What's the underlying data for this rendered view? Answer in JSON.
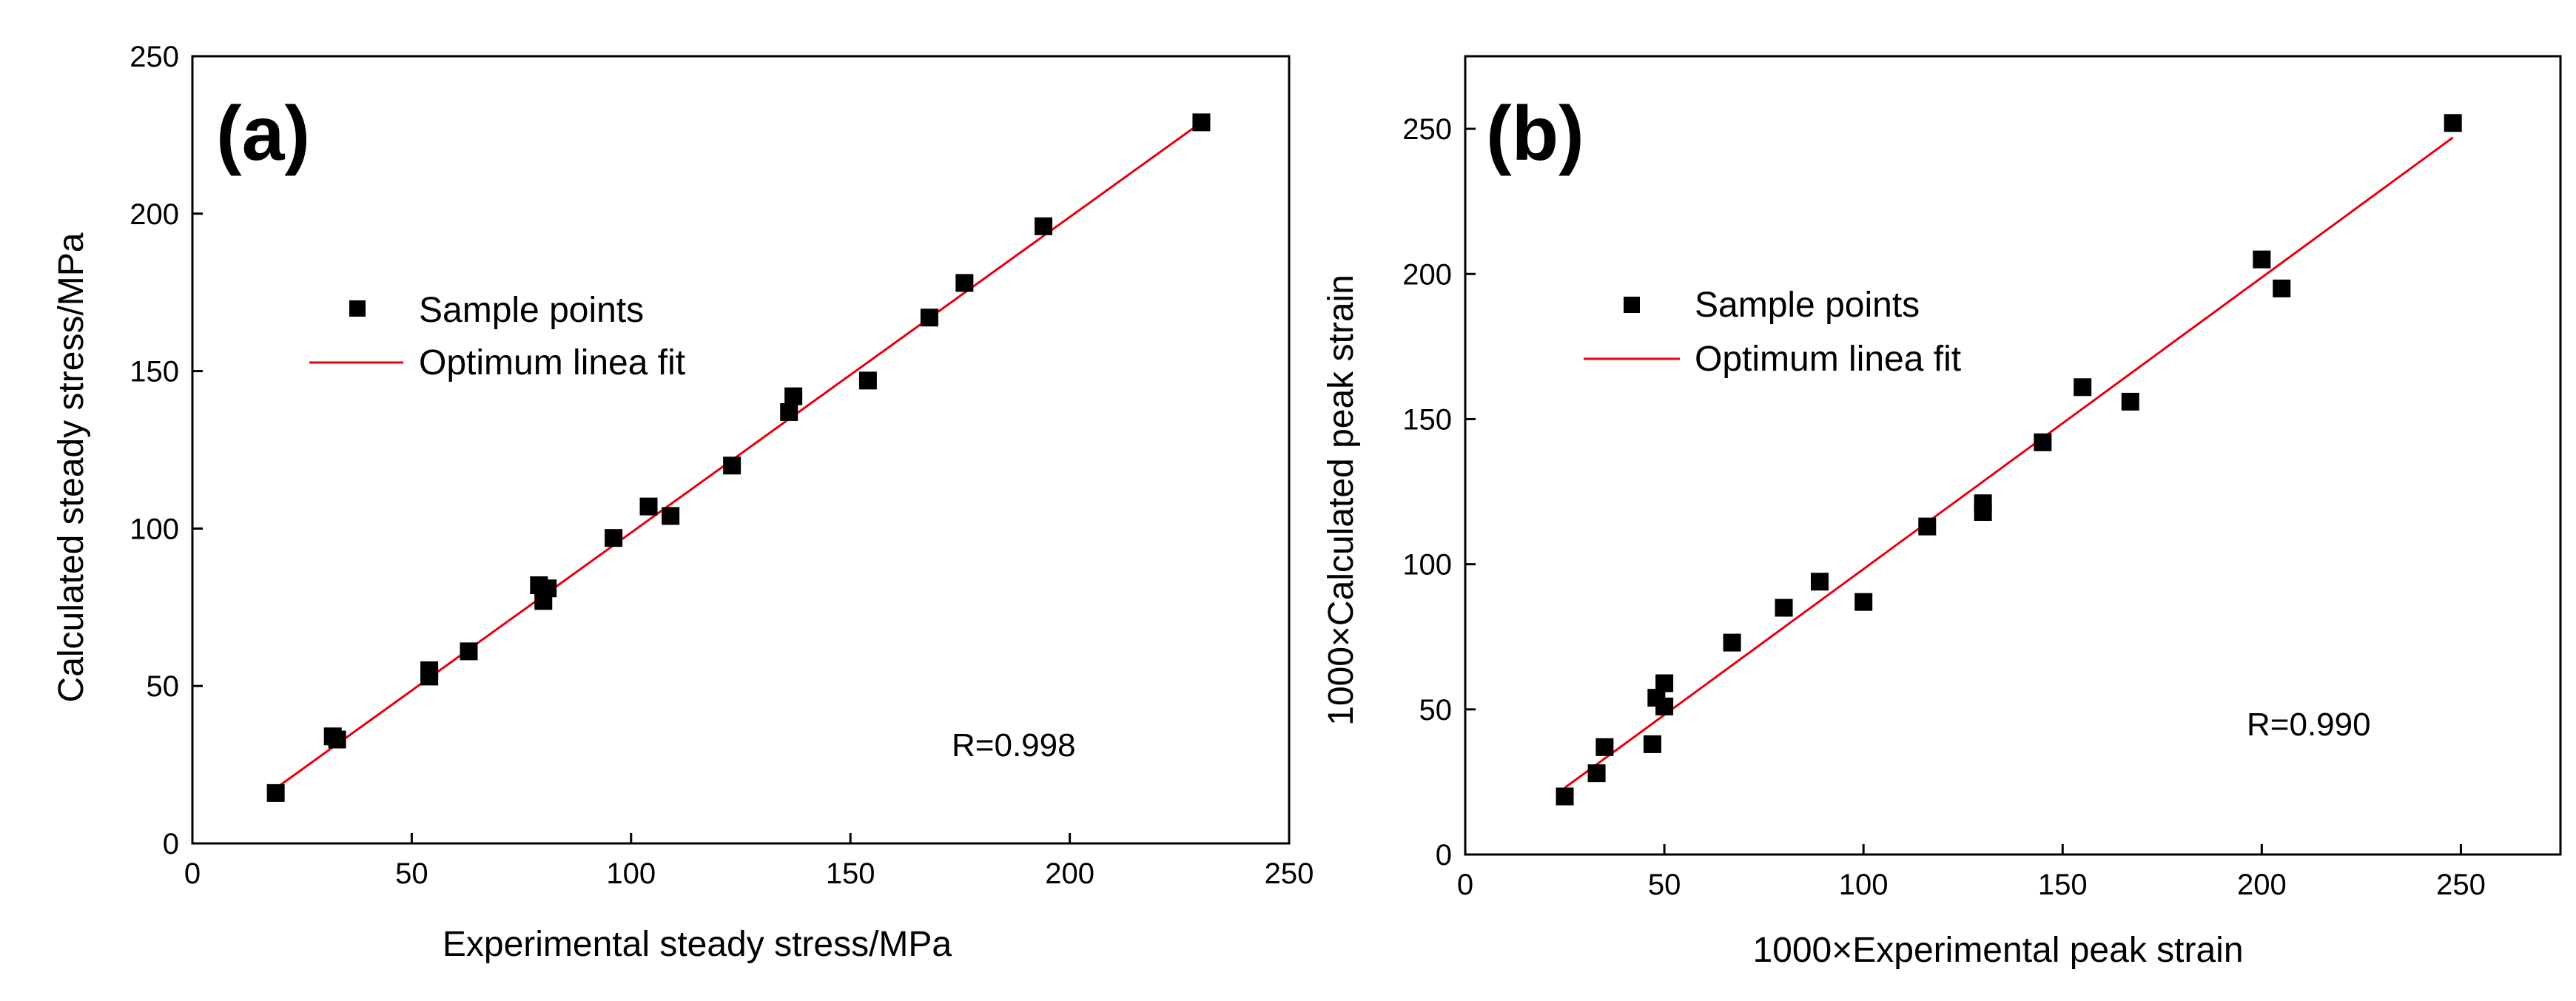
{
  "chart_data": [
    {
      "type": "scatter",
      "panel_label": "(a)",
      "xlabel": "Experimental steady stress/MPa",
      "ylabel": "Calculated steady stress/MPa",
      "xlim": [
        0,
        250
      ],
      "ylim": [
        0,
        250
      ],
      "xticks": [
        "0",
        "50",
        "100",
        "150",
        "200",
        "250"
      ],
      "yticks": [
        "0",
        "50",
        "100",
        "150",
        "200",
        "250"
      ],
      "legend_position": "upper-left",
      "legend": {
        "points_label": "Sample points",
        "fit_label": "Optimum linea fit"
      },
      "annotation": "R=0.998",
      "grid": false,
      "colors": {
        "points": "#000000",
        "fit": "#e8000b"
      },
      "series": [
        {
          "name": "Sample points",
          "points": [
            [
              19,
              16
            ],
            [
              32,
              34
            ],
            [
              33,
              33
            ],
            [
              54,
              55
            ],
            [
              54,
              53
            ],
            [
              63,
              61
            ],
            [
              79,
              82
            ],
            [
              80,
              77
            ],
            [
              81,
              81
            ],
            [
              96,
              97
            ],
            [
              104,
              107
            ],
            [
              109,
              104
            ],
            [
              123,
              120
            ],
            [
              136,
              137
            ],
            [
              137,
              142
            ],
            [
              154,
              147
            ],
            [
              168,
              167
            ],
            [
              176,
              178
            ],
            [
              194,
              196
            ],
            [
              230,
              229
            ]
          ]
        },
        {
          "name": "Optimum linea fit",
          "fit_line": [
            [
              19,
              17.5
            ],
            [
              230,
              229
            ]
          ]
        }
      ]
    },
    {
      "type": "scatter",
      "panel_label": "(b)",
      "xlabel": "1000×Experimental peak strain",
      "ylabel": "1000×Calculated peak strain",
      "xlim": [
        0,
        275
      ],
      "ylim": [
        0,
        275
      ],
      "xticks": [
        "0",
        "50",
        "100",
        "150",
        "200",
        "250"
      ],
      "yticks": [
        "0",
        "50",
        "100",
        "150",
        "200",
        "250"
      ],
      "legend_position": "upper-left",
      "legend": {
        "points_label": "Sample points",
        "fit_label": "Optimum linea fit"
      },
      "annotation": "R=0.990",
      "grid": false,
      "colors": {
        "points": "#000000",
        "fit": "#e8000b"
      },
      "series": [
        {
          "name": "Sample points",
          "points": [
            [
              25,
              20
            ],
            [
              33,
              28
            ],
            [
              35,
              37
            ],
            [
              47,
              38
            ],
            [
              48,
              54
            ],
            [
              50,
              59
            ],
            [
              50,
              51
            ],
            [
              67,
              73
            ],
            [
              80,
              85
            ],
            [
              89,
              94
            ],
            [
              100,
              87
            ],
            [
              116,
              113
            ],
            [
              130,
              121
            ],
            [
              130,
              118
            ],
            [
              145,
              142
            ],
            [
              155,
              161
            ],
            [
              167,
              156
            ],
            [
              200,
              205
            ],
            [
              205,
              195
            ],
            [
              248,
              252
            ]
          ]
        },
        {
          "name": "Optimum linea fit",
          "fit_line": [
            [
              25,
              23
            ],
            [
              248,
              247
            ]
          ]
        }
      ]
    }
  ]
}
